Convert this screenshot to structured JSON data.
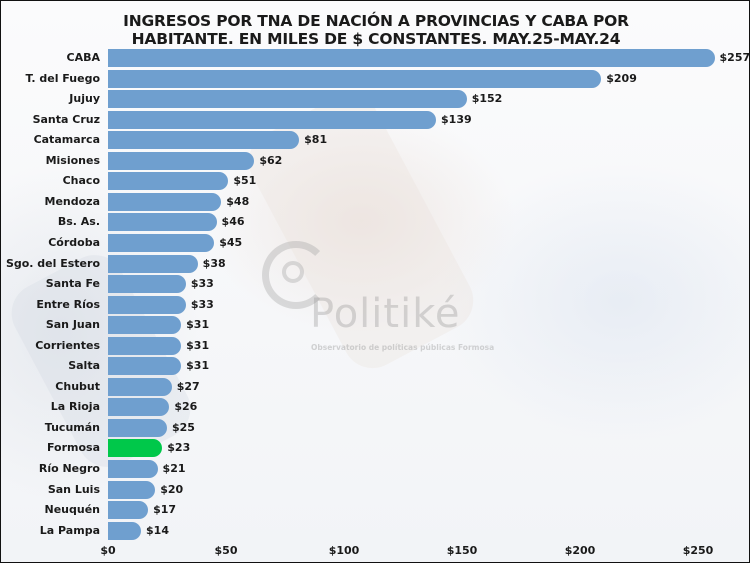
{
  "title_line1": "INGRESOS POR TNA DE NACIÓN A PROVINCIAS Y CABA POR",
  "title_line2": "HABITANTE. EN MILES DE $ CONSTANTES. MAY.25-MAY.24",
  "watermark": {
    "brand": "Politiké",
    "subtitle": "Observatorio de políticas públicas Formosa"
  },
  "colors": {
    "bar": "#6f9fcf",
    "highlight": "#00c84a"
  },
  "chart_data": {
    "type": "bar",
    "orientation": "horizontal",
    "title": "INGRESOS POR TNA DE NACIÓN A PROVINCIAS Y CABA POR HABITANTE. EN MILES DE $ CONSTANTES. MAY.25-MAY.24",
    "xlabel": "",
    "ylabel": "",
    "xlim": [
      0,
      260
    ],
    "grid": false,
    "legend": null,
    "categories": [
      "CABA",
      "T. del Fuego",
      "Jujuy",
      "Santa Cruz",
      "Catamarca",
      "Misiones",
      "Chaco",
      "Mendoza",
      "Bs. As.",
      "Córdoba",
      "Sgo. del Estero",
      "Santa Fe",
      "Entre Ríos",
      "San Juan",
      "Corrientes",
      "Salta",
      "Chubut",
      "La Rioja",
      "Tucumán",
      "Formosa",
      "Río Negro",
      "San Luis",
      "Neuquén",
      "La Pampa"
    ],
    "values": [
      257,
      209,
      152,
      139,
      81,
      62,
      51,
      48,
      46,
      45,
      38,
      33,
      33,
      31,
      31,
      31,
      27,
      26,
      25,
      23,
      21,
      20,
      17,
      14
    ],
    "value_labels": [
      "$257",
      "$209",
      "$152",
      "$139",
      "$81",
      "$62",
      "$51",
      "$48",
      "$46",
      "$45",
      "$38",
      "$33",
      "$33",
      "$31",
      "$31",
      "$31",
      "$27",
      "$26",
      "$25",
      "$23",
      "$21",
      "$20",
      "$17",
      "$14"
    ],
    "highlight": "Formosa",
    "x_ticks": [
      0,
      50,
      100,
      150,
      200,
      250
    ],
    "x_tick_labels": [
      "$0",
      "$50",
      "$100",
      "$150",
      "$200",
      "$250"
    ]
  }
}
